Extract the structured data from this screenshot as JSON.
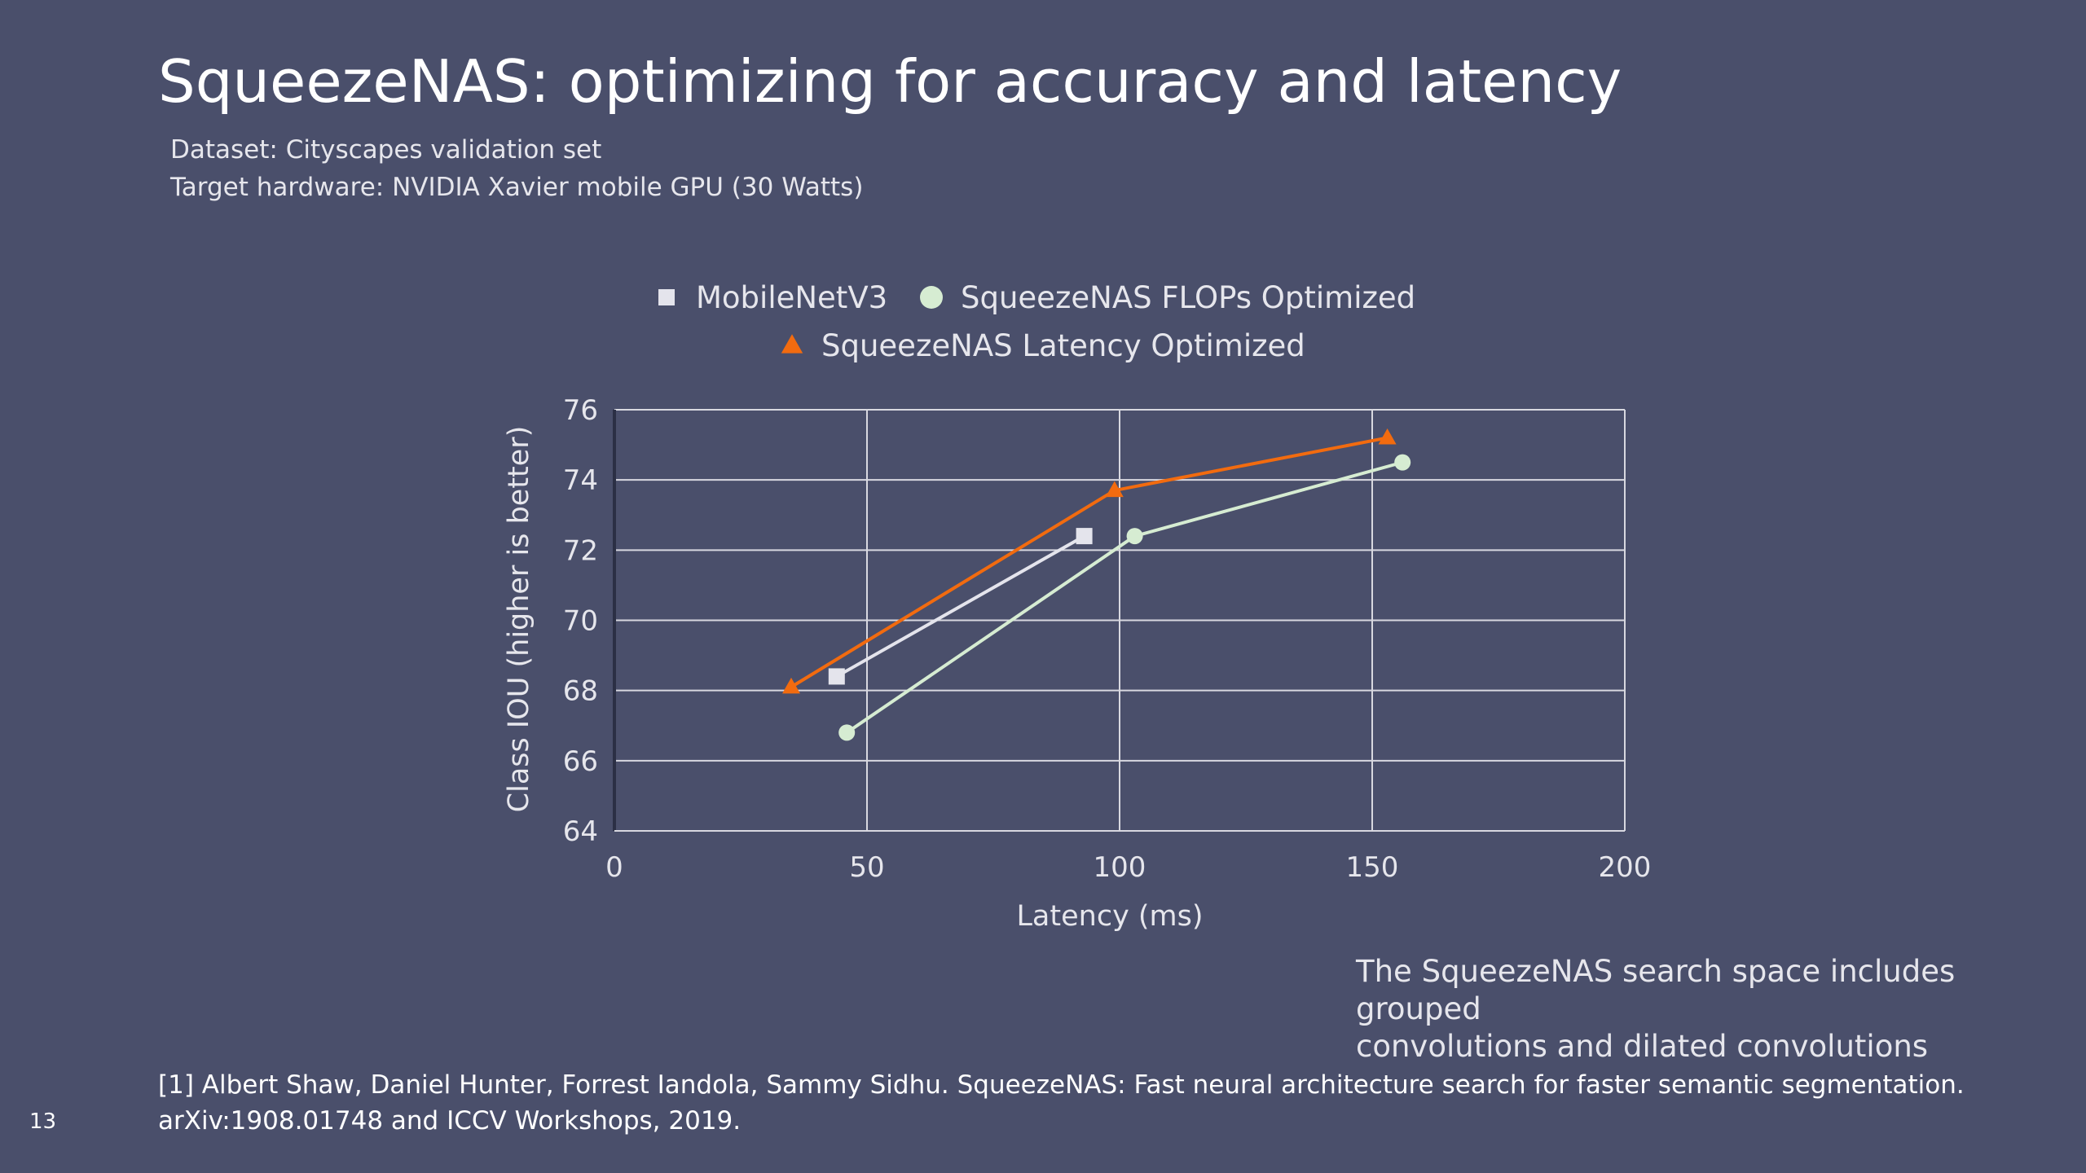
{
  "slide": {
    "title": "SqueezeNAS: optimizing for accuracy and latency",
    "subtitle_1": "Dataset: Cityscapes validation set",
    "subtitle_2": "Target hardware: NVIDIA Xavier mobile GPU (30 Watts)",
    "note_1": "The SqueezeNAS search space includes grouped",
    "note_2": "convolutions and dilated convolutions",
    "reference_1": "[1] Albert Shaw, Daniel Hunter, Forrest Iandola, Sammy Sidhu. SqueezeNAS: Fast neural architecture search for faster semantic segmentation.",
    "reference_2": "arXiv:1908.01748 and ICCV Workshops, 2019.",
    "page_number": "13",
    "background_color": "#4a4f6b"
  },
  "chart_data": {
    "type": "line",
    "xlabel": "Latency (ms)",
    "ylabel": "Class IOU (higher is better)",
    "xlim": [
      0,
      200
    ],
    "ylim": [
      64,
      76
    ],
    "x_ticks": [
      0,
      50,
      100,
      150,
      200
    ],
    "y_ticks": [
      64,
      66,
      68,
      70,
      72,
      74,
      76
    ],
    "grid": true,
    "legend_position": "top",
    "series": [
      {
        "name": "MobileNetV3",
        "marker": "square",
        "color": "#e4e4ec",
        "points": [
          [
            44,
            68.4
          ],
          [
            93,
            72.4
          ]
        ]
      },
      {
        "name": "SqueezeNAS FLOPs Optimized",
        "marker": "circle",
        "color": "#d6ecd2",
        "points": [
          [
            46,
            66.8
          ],
          [
            103,
            72.4
          ],
          [
            156,
            74.5
          ]
        ]
      },
      {
        "name": "SqueezeNAS Latency Optimized",
        "marker": "triangle",
        "color": "#f26b0f",
        "points": [
          [
            35,
            68.1
          ],
          [
            99,
            73.7
          ],
          [
            153,
            75.2
          ]
        ]
      }
    ]
  }
}
